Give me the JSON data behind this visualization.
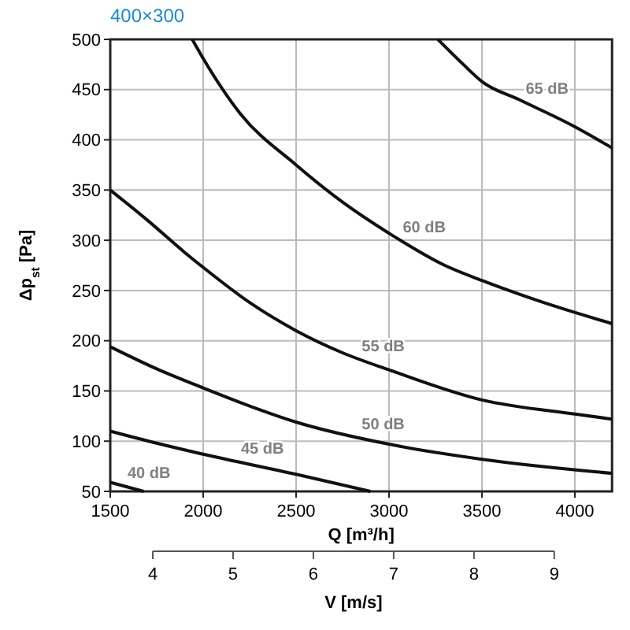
{
  "chart_data": {
    "type": "line",
    "title": "400×300",
    "xlabel": "Q [m³/h]",
    "ylabel": "Δp$_{st}$ [Pa]",
    "x2label": "V [m/s]",
    "xlim": [
      1500,
      4200
    ],
    "xticks": [
      1500,
      2000,
      2500,
      3000,
      3500,
      4000
    ],
    "ylim": [
      50,
      500
    ],
    "yticks": [
      50,
      100,
      150,
      200,
      250,
      300,
      350,
      400,
      450,
      500
    ],
    "x2lim": [
      3.47,
      9.72
    ],
    "x2ticks": [
      4,
      5,
      6,
      7,
      8,
      9
    ],
    "grid": true,
    "marker": "none",
    "line_style": "solid",
    "series": [
      {
        "name": "40 dB",
        "color": "#111111",
        "x": [
          1500,
          1680
        ],
        "values": [
          59,
          50
        ]
      },
      {
        "name": "45 dB",
        "color": "#111111",
        "x": [
          1500,
          1750,
          2000,
          2500,
          2900
        ],
        "values": [
          110,
          98,
          87,
          67,
          50
        ]
      },
      {
        "name": "50 dB",
        "color": "#111111",
        "x": [
          1500,
          1750,
          2000,
          2250,
          2500,
          3000,
          3500,
          4200
        ],
        "values": [
          194,
          172,
          153,
          135,
          119,
          97,
          82,
          68
        ]
      },
      {
        "name": "55 dB",
        "color": "#111111",
        "x": [
          1500,
          1700,
          1900,
          2000,
          2250,
          2500,
          2750,
          3000,
          3500,
          4000,
          4200
        ],
        "values": [
          350,
          320,
          288,
          273,
          238,
          210,
          188,
          171,
          141,
          127,
          122
        ]
      },
      {
        "name": "60 dB",
        "color": "#111111",
        "x": [
          1941,
          2000,
          2200,
          2500,
          2750,
          3000,
          3300,
          3500,
          3800,
          4200
        ],
        "values": [
          500,
          481,
          426,
          375,
          338,
          307,
          275,
          260,
          240,
          217
        ]
      },
      {
        "name": "65 dB",
        "color": "#111111",
        "x": [
          3263,
          3400,
          3500,
          3700,
          4000,
          4200
        ],
        "values": [
          500,
          475,
          458,
          440,
          413,
          392
        ]
      }
    ]
  }
}
